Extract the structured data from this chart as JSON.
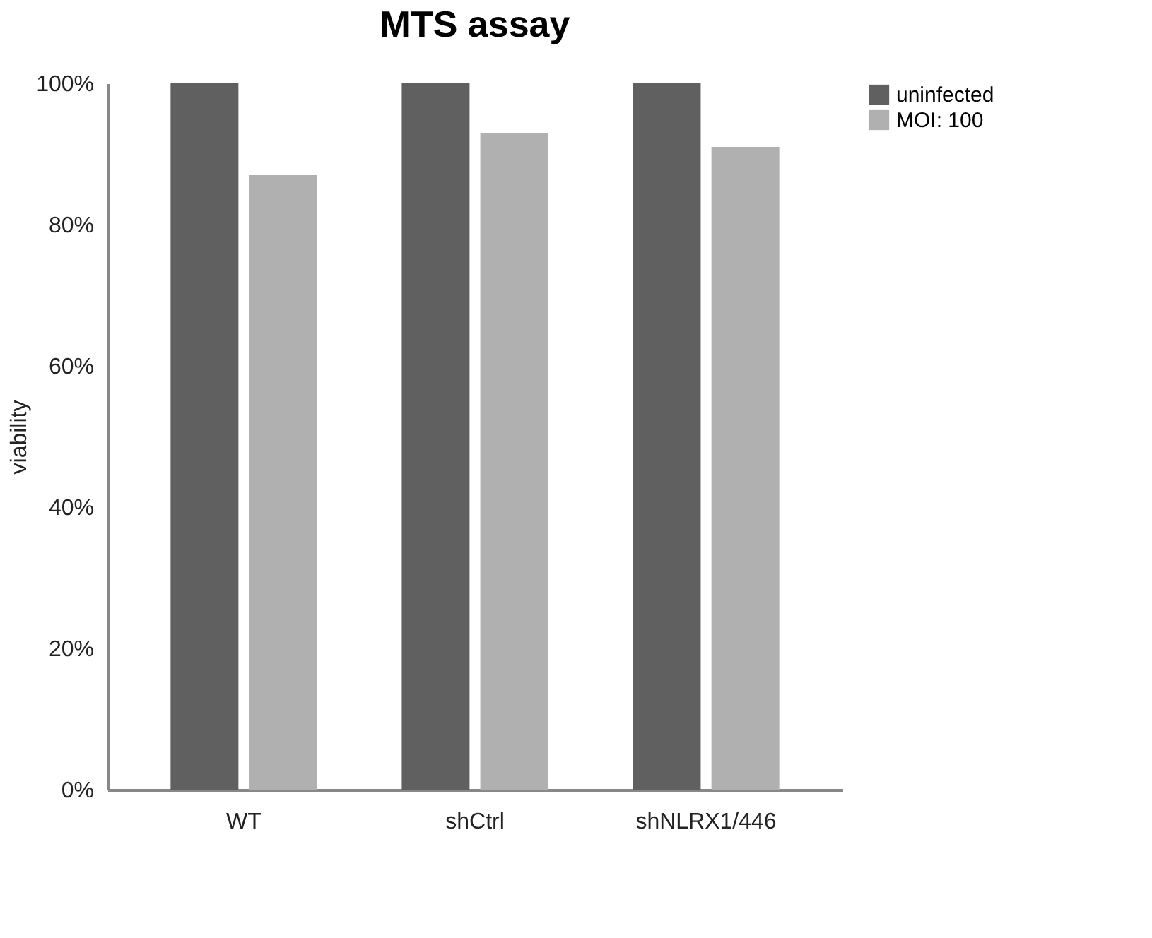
{
  "chart_data": {
    "type": "bar",
    "title": "MTS assay",
    "ylabel": "viability",
    "categories": [
      "WT",
      "shCtrl",
      "shNLRX1/446"
    ],
    "series": [
      {
        "name": "uninfected",
        "color": "#606060",
        "values": [
          100,
          100,
          100
        ]
      },
      {
        "name": "MOI: 100",
        "color": "#b0b0b0",
        "values": [
          87,
          93,
          91
        ]
      }
    ],
    "ylim": [
      0,
      100
    ],
    "yticks": [
      {
        "value": 0,
        "label": "0%"
      },
      {
        "value": 20,
        "label": "20%"
      },
      {
        "value": 40,
        "label": "40%"
      },
      {
        "value": 60,
        "label": "60%"
      },
      {
        "value": 80,
        "label": "80%"
      },
      {
        "value": 100,
        "label": "100%"
      }
    ],
    "grid": false,
    "legend": "top right"
  }
}
